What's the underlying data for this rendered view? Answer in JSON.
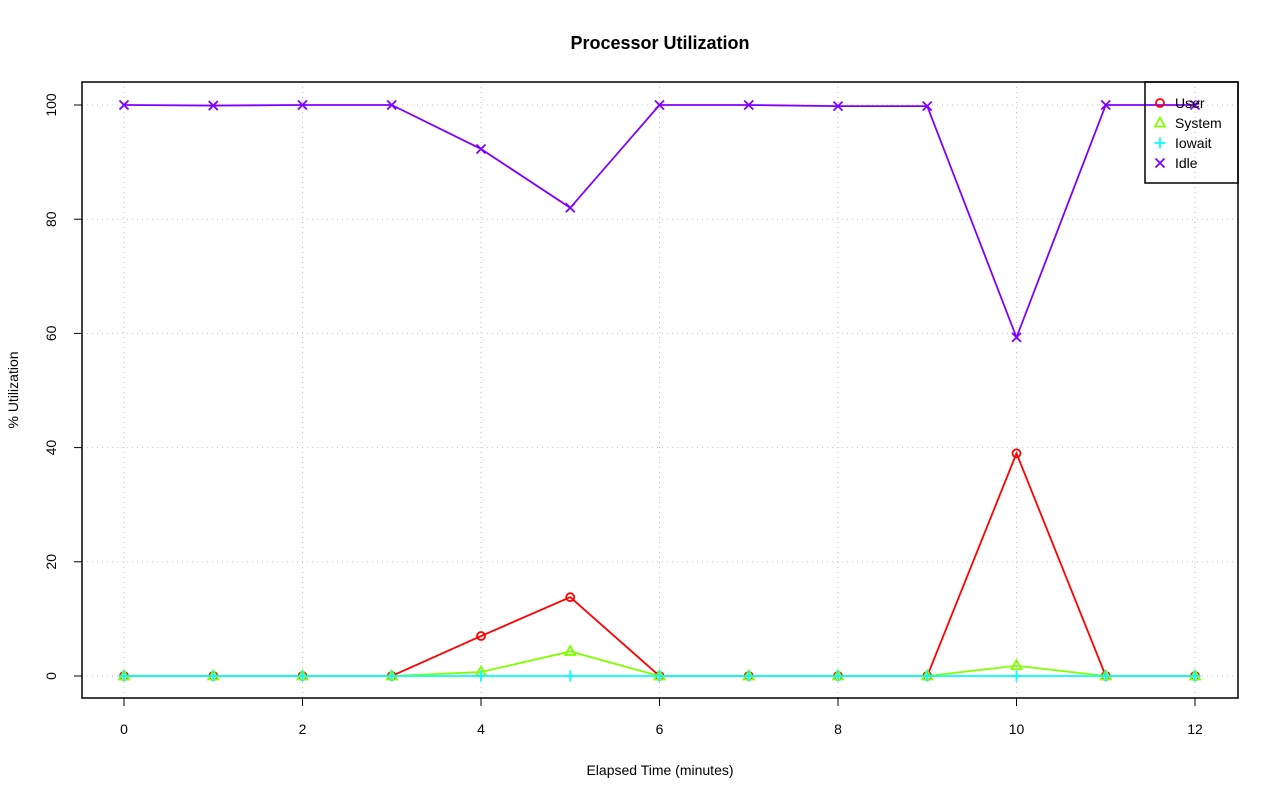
{
  "chart_data": {
    "type": "line",
    "title": "Processor Utilization",
    "xlabel": "Elapsed Time (minutes)",
    "ylabel": "% Utilization",
    "xlim": [
      0,
      12
    ],
    "ylim": [
      0,
      100
    ],
    "xticks": [
      0,
      2,
      4,
      6,
      8,
      10,
      12
    ],
    "yticks": [
      0,
      20,
      40,
      60,
      80,
      100
    ],
    "grid": true,
    "legend_position": "top-right",
    "x": [
      0,
      1,
      2,
      3,
      4,
      5,
      6,
      7,
      8,
      9,
      10,
      11,
      12
    ],
    "series": [
      {
        "name": "User",
        "color": "#ff0000",
        "marker": "circle",
        "values": [
          0,
          0,
          0,
          0,
          7.0,
          13.8,
          0,
          0,
          0,
          0,
          39.0,
          0,
          0
        ]
      },
      {
        "name": "System",
        "color": "#80ff00",
        "marker": "triangle",
        "values": [
          0,
          0,
          0,
          0,
          0.7,
          4.3,
          0,
          0,
          0,
          0,
          1.8,
          0,
          0
        ]
      },
      {
        "name": "Iowait",
        "color": "#00ffff",
        "marker": "plus",
        "values": [
          0,
          0,
          0,
          0,
          0,
          0,
          0,
          0,
          0,
          0,
          0,
          0,
          0
        ]
      },
      {
        "name": "Idle",
        "color": "#8000ff",
        "marker": "cross",
        "values": [
          100,
          99.9,
          100,
          100,
          92.3,
          82.0,
          100,
          100,
          99.8,
          99.8,
          59.3,
          100,
          100
        ]
      }
    ]
  }
}
